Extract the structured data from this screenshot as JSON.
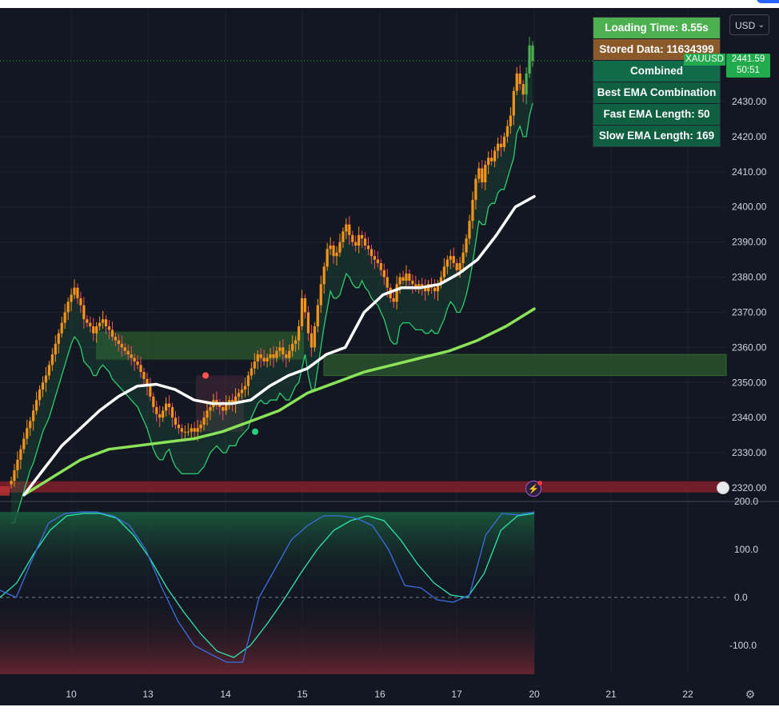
{
  "colors": {
    "background": "#131722",
    "candle": "#f7931a",
    "candle_recent": "#4caf50",
    "fast_ema": "#ffffff",
    "slow_ema": "#8be35a",
    "trail": "#2ecc71",
    "zone_green": "#2e5f2e",
    "zone_red": "#7a1f2b",
    "osc_fast": "#3b6fe0",
    "osc_slow": "#2ee6b0"
  },
  "currency": {
    "label": "USD"
  },
  "symbol": {
    "name": "XAUUSD",
    "last_price": "2441.59",
    "countdown": "50:51"
  },
  "panel": {
    "loading_time": "Loading Time: 8.55s",
    "stored_data": "Stored Data: 11634399",
    "combined": "Combined",
    "best": "Best EMA Combination",
    "fast": "Fast EMA Length: 50",
    "slow": "Slow EMA Length: 169"
  },
  "icons": {
    "settings": "gear-icon",
    "alert": "lightning-icon",
    "flag": "us-flag-icon",
    "dropdown": "chevron-down-icon"
  },
  "chart_data": [
    {
      "type": "candlestick",
      "title": "",
      "xlabel": "",
      "ylabel": "",
      "x_ticks": [
        "10",
        "13",
        "14",
        "15",
        "16",
        "17",
        "20",
        "21",
        "22"
      ],
      "y_ticks": [
        "2320.00",
        "2330.00",
        "2340.00",
        "2350.00",
        "2360.00",
        "2370.00",
        "2380.00",
        "2390.00",
        "2400.00",
        "2410.00",
        "2420.00",
        "2430.00"
      ],
      "ylim": [
        2318,
        2452
      ],
      "grid": true,
      "price_line": 2441.59,
      "candle_closes": [
        2322,
        2325,
        2328,
        2331,
        2334,
        2337,
        2339,
        2342,
        2345,
        2348,
        2350,
        2352,
        2355,
        2358,
        2361,
        2364,
        2367,
        2370,
        2373,
        2375,
        2377,
        2374,
        2372,
        2368,
        2367,
        2366,
        2364,
        2366,
        2367,
        2368,
        2366,
        2365,
        2363,
        2362,
        2361,
        2360,
        2359,
        2358,
        2357,
        2356,
        2355,
        2353,
        2351,
        2349,
        2346,
        2343,
        2341,
        2340,
        2342,
        2344,
        2343,
        2340,
        2338,
        2337,
        2336,
        2336,
        2336,
        2337,
        2336,
        2337,
        2338,
        2340,
        2342,
        2343,
        2345,
        2344,
        2343,
        2342,
        2344,
        2345,
        2344,
        2346,
        2347,
        2348,
        2349,
        2352,
        2354,
        2356,
        2358,
        2357,
        2356,
        2357,
        2358,
        2357,
        2359,
        2360,
        2358,
        2357,
        2359,
        2361,
        2362,
        2366,
        2374,
        2370,
        2364,
        2360,
        2366,
        2372,
        2378,
        2383,
        2388,
        2389,
        2386,
        2387,
        2390,
        2393,
        2395,
        2392,
        2390,
        2389,
        2392,
        2391,
        2389,
        2388,
        2386,
        2385,
        2384,
        2382,
        2380,
        2377,
        2374,
        2373,
        2378,
        2380,
        2379,
        2381,
        2379,
        2378,
        2377,
        2378,
        2377,
        2376,
        2378,
        2377,
        2376,
        2378,
        2380,
        2383,
        2385,
        2386,
        2384,
        2382,
        2384,
        2387,
        2391,
        2396,
        2402,
        2408,
        2411,
        2407,
        2412,
        2414,
        2413,
        2416,
        2418,
        2417,
        2420,
        2423,
        2426,
        2433,
        2438,
        2435,
        2432,
        2438,
        2446,
        2441.59
      ],
      "fast_ema": [
        2318,
        2325,
        2332,
        2337,
        2342,
        2346,
        2349,
        2349.5,
        2348,
        2345,
        2344,
        2344,
        2345,
        2349,
        2352,
        2354,
        2358,
        2360,
        2370,
        2375,
        2377,
        2377,
        2378,
        2381,
        2385,
        2392,
        2400,
        2403
      ],
      "slow_ema": [
        2318,
        2323,
        2328,
        2331,
        2332,
        2333,
        2334,
        2336,
        2339,
        2342,
        2347,
        2350,
        2353,
        2355,
        2357,
        2359,
        2362,
        2366,
        2371
      ],
      "zones": [
        {
          "kind": "supply-demand",
          "from": 2356.5,
          "to": 2364.5,
          "color": "green"
        },
        {
          "kind": "supply-demand",
          "from": 2352,
          "to": 2358,
          "color": "green"
        },
        {
          "kind": "resistance",
          "from": 2318,
          "to": 2320.5,
          "color": "red"
        }
      ]
    },
    {
      "type": "line",
      "title": "",
      "y_ticks": [
        "-100.0",
        "0.0",
        "100.0",
        "200.0"
      ],
      "ylim": [
        -160,
        205
      ],
      "zero_line": true,
      "series": [
        {
          "values": [
            15,
            0,
            80,
            155,
            175,
            178,
            178,
            170,
            150,
            100,
            20,
            -50,
            -100,
            -118,
            -135,
            -135,
            0,
            60,
            120,
            150,
            170,
            170,
            165,
            150,
            100,
            25,
            20,
            -5,
            -10,
            5,
            130,
            175,
            172,
            178
          ]
        },
        {
          "values": [
            0,
            30,
            90,
            140,
            170,
            175,
            175,
            165,
            130,
            80,
            20,
            -30,
            -75,
            -112,
            -125,
            -100,
            -55,
            -5,
            50,
            100,
            140,
            160,
            170,
            160,
            120,
            70,
            30,
            5,
            0,
            50,
            140,
            170,
            175
          ]
        }
      ]
    }
  ]
}
